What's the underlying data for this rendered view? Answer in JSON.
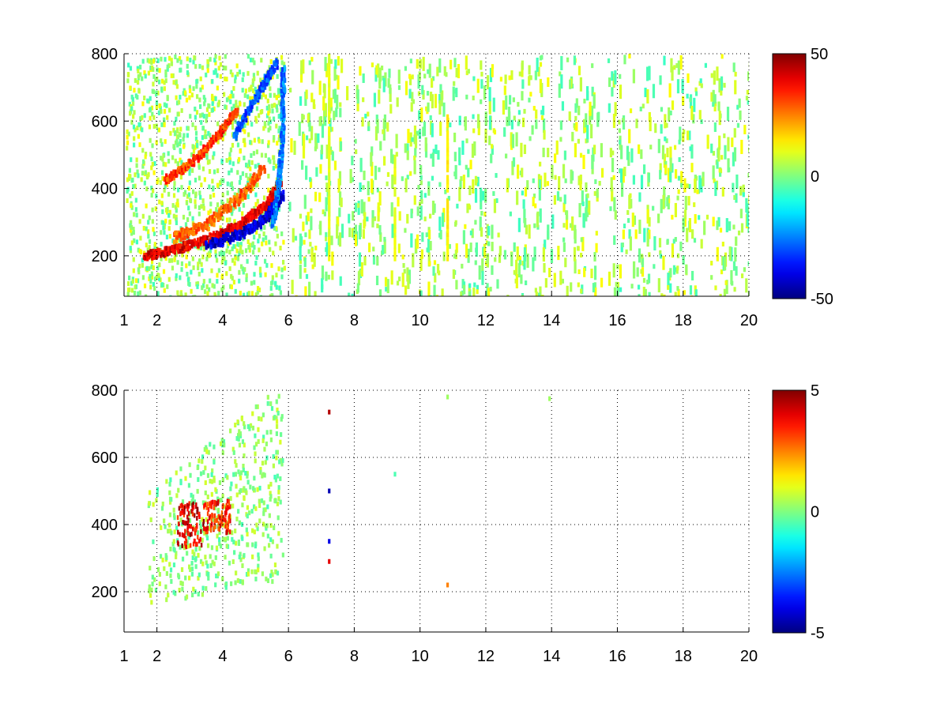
{
  "chart_data": [
    {
      "type": "heatmap",
      "title": "",
      "xlabel": "",
      "ylabel": "",
      "xlim": [
        1,
        20
      ],
      "ylim": [
        80,
        800
      ],
      "xticks": [
        1,
        2,
        4,
        6,
        8,
        10,
        12,
        14,
        16,
        18,
        20
      ],
      "yticks": [
        200,
        400,
        600,
        800
      ],
      "grid": true,
      "colormap": "jet",
      "colorbar": {
        "min": -50,
        "max": 50,
        "ticks": [
          50,
          0,
          -50
        ],
        "placement": "right"
      },
      "features": [
        {
          "kind": "band",
          "path": [
            [
              1.6,
              205
            ],
            [
              2.5,
              225
            ],
            [
              3.5,
              255
            ],
            [
              4.5,
              300
            ],
            [
              5.3,
              360
            ],
            [
              5.7,
              420
            ]
          ],
          "value": 40,
          "width": 14
        },
        {
          "kind": "band",
          "path": [
            [
              2.5,
              260
            ],
            [
              3.5,
              300
            ],
            [
              4.5,
              380
            ],
            [
              5.2,
              470
            ]
          ],
          "value": 28,
          "width": 18
        },
        {
          "kind": "band",
          "path": [
            [
              2.2,
              430
            ],
            [
              3,
              480
            ],
            [
              3.8,
              560
            ],
            [
              4.4,
              640
            ]
          ],
          "value": 32,
          "width": 12
        },
        {
          "kind": "band",
          "path": [
            [
              3.5,
              240
            ],
            [
              4.5,
              270
            ],
            [
              5.3,
              320
            ],
            [
              5.8,
              390
            ]
          ],
          "value": -42,
          "width": 16
        },
        {
          "kind": "band",
          "path": [
            [
              4.3,
              560
            ],
            [
              5,
              680
            ],
            [
              5.6,
              780
            ]
          ],
          "value": -30,
          "width": 14
        },
        {
          "kind": "band",
          "path": [
            [
              5.5,
              300
            ],
            [
              5.7,
              450
            ],
            [
              5.8,
              600
            ],
            [
              5.8,
              760
            ]
          ],
          "value": -25,
          "width": 10
        },
        {
          "kind": "column",
          "x": 7.2,
          "y": [
            200,
            800
          ],
          "value": 10
        },
        {
          "kind": "column",
          "x": 10.8,
          "y": [
            200,
            620
          ],
          "value": 14
        },
        {
          "kind": "column",
          "x": 9.2,
          "y": [
            200,
            500
          ],
          "value": 10
        }
      ]
    },
    {
      "type": "heatmap",
      "title": "",
      "xlabel": "",
      "ylabel": "",
      "xlim": [
        1,
        20
      ],
      "ylim": [
        80,
        800
      ],
      "xticks": [
        1,
        2,
        4,
        6,
        8,
        10,
        12,
        14,
        16,
        18,
        20
      ],
      "yticks": [
        200,
        400,
        600,
        800
      ],
      "grid": true,
      "colormap": "jet",
      "colorbar": {
        "min": -5,
        "max": 5,
        "ticks": [
          5,
          0,
          -5
        ],
        "placement": "right"
      },
      "features": [
        {
          "kind": "patch",
          "x": [
            2.6,
            3.4
          ],
          "y": [
            340,
            470
          ],
          "value": 4
        },
        {
          "kind": "patch",
          "x": [
            3.4,
            4.2
          ],
          "y": [
            380,
            480
          ],
          "value": 3.5
        },
        {
          "kind": "point",
          "x": 7.2,
          "y": 735,
          "value": 4.5
        },
        {
          "kind": "point",
          "x": 7.2,
          "y": 290,
          "value": 4
        },
        {
          "kind": "point",
          "x": 7.2,
          "y": 500,
          "value": -4.5
        },
        {
          "kind": "point",
          "x": 7.2,
          "y": 350,
          "value": -4
        },
        {
          "kind": "point",
          "x": 10.8,
          "y": 220,
          "value": 2.5
        },
        {
          "kind": "point",
          "x": 10.8,
          "y": 780,
          "value": 0.3
        },
        {
          "kind": "point",
          "x": 13.9,
          "y": 775,
          "value": 0.3
        },
        {
          "kind": "point",
          "x": 9.2,
          "y": 550,
          "value": -0.5
        }
      ]
    }
  ]
}
